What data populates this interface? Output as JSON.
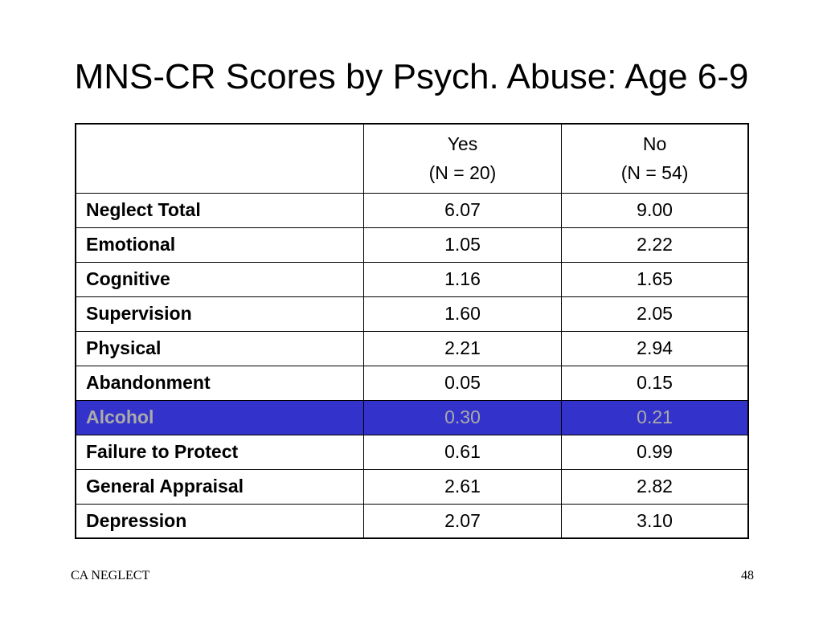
{
  "slide": {
    "title": "MNS-CR Scores by Psych. Abuse: Age 6-9"
  },
  "table": {
    "columns": [
      {
        "label": "Yes",
        "sublabel": "(N = 20)"
      },
      {
        "label": "No",
        "sublabel": "(N = 54)"
      }
    ],
    "rows": [
      {
        "label": "Neglect Total",
        "yes": "6.07",
        "no": "9.00"
      },
      {
        "label": "Emotional",
        "yes": "1.05",
        "no": "2.22"
      },
      {
        "label": "Cognitive",
        "yes": "1.16",
        "no": "1.65"
      },
      {
        "label": "Supervision",
        "yes": "1.60",
        "no": "2.05"
      },
      {
        "label": "Physical",
        "yes": "2.21",
        "no": "2.94"
      },
      {
        "label": "Abandonment",
        "yes": "0.05",
        "no": "0.15"
      },
      {
        "label": "Alcohol",
        "yes": "0.30",
        "no": "0.21"
      },
      {
        "label": "Failure to Protect",
        "yes": "0.61",
        "no": "0.99"
      },
      {
        "label": "General Appraisal",
        "yes": "2.61",
        "no": "2.82"
      },
      {
        "label": "Depression",
        "yes": "2.07",
        "no": "3.10"
      }
    ],
    "highlight_color": "#3333cc",
    "highlight_text_color": "#aaaaaa"
  },
  "footer": {
    "left": "CA NEGLECT",
    "page_number": "48"
  }
}
